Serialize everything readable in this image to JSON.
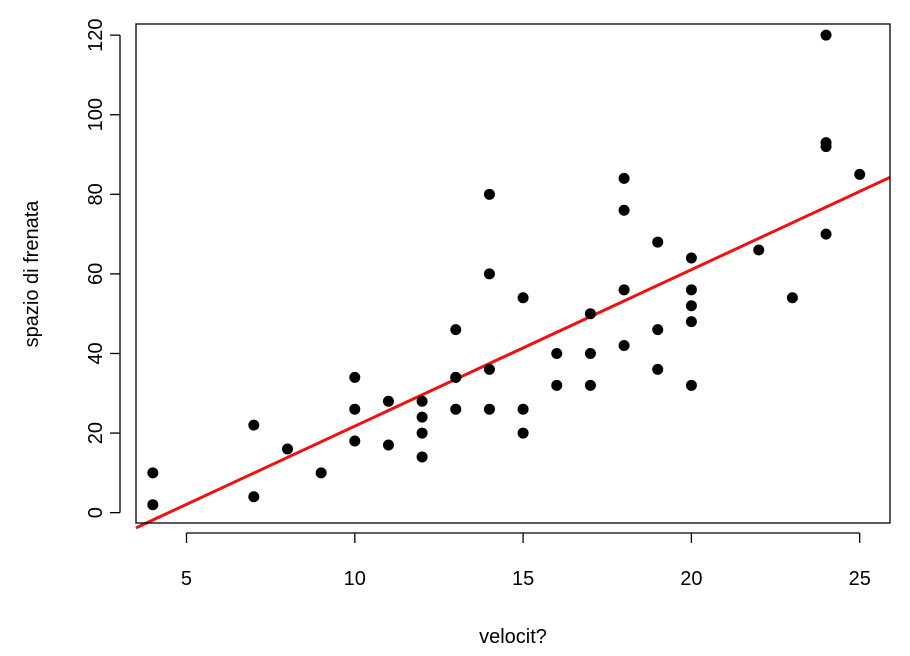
{
  "chart_data": {
    "type": "scatter",
    "title": "",
    "xlabel": "velocit?",
    "ylabel": "spazio di frenata",
    "xlim": [
      3.5,
      25.9
    ],
    "ylim": [
      -2.6,
      122.8
    ],
    "x_ticks": [
      5,
      10,
      15,
      20,
      25
    ],
    "y_ticks": [
      0,
      20,
      40,
      60,
      80,
      100,
      120
    ],
    "grid": false,
    "legend": "none",
    "point_color": "#000000",
    "line_color": "#ee1111",
    "regression_line": {
      "intercept": -17.579,
      "slope": 3.932
    },
    "points": [
      {
        "x": 4,
        "y": 2
      },
      {
        "x": 4,
        "y": 10
      },
      {
        "x": 7,
        "y": 4
      },
      {
        "x": 7,
        "y": 22
      },
      {
        "x": 8,
        "y": 16
      },
      {
        "x": 9,
        "y": 10
      },
      {
        "x": 10,
        "y": 18
      },
      {
        "x": 10,
        "y": 26
      },
      {
        "x": 10,
        "y": 34
      },
      {
        "x": 11,
        "y": 17
      },
      {
        "x": 11,
        "y": 28
      },
      {
        "x": 12,
        "y": 14
      },
      {
        "x": 12,
        "y": 20
      },
      {
        "x": 12,
        "y": 24
      },
      {
        "x": 12,
        "y": 28
      },
      {
        "x": 13,
        "y": 26
      },
      {
        "x": 13,
        "y": 34
      },
      {
        "x": 13,
        "y": 34
      },
      {
        "x": 13,
        "y": 46
      },
      {
        "x": 14,
        "y": 26
      },
      {
        "x": 14,
        "y": 36
      },
      {
        "x": 14,
        "y": 60
      },
      {
        "x": 14,
        "y": 80
      },
      {
        "x": 15,
        "y": 20
      },
      {
        "x": 15,
        "y": 26
      },
      {
        "x": 15,
        "y": 54
      },
      {
        "x": 16,
        "y": 32
      },
      {
        "x": 16,
        "y": 40
      },
      {
        "x": 17,
        "y": 32
      },
      {
        "x": 17,
        "y": 40
      },
      {
        "x": 17,
        "y": 50
      },
      {
        "x": 18,
        "y": 42
      },
      {
        "x": 18,
        "y": 56
      },
      {
        "x": 18,
        "y": 76
      },
      {
        "x": 18,
        "y": 84
      },
      {
        "x": 19,
        "y": 36
      },
      {
        "x": 19,
        "y": 46
      },
      {
        "x": 19,
        "y": 68
      },
      {
        "x": 20,
        "y": 32
      },
      {
        "x": 20,
        "y": 48
      },
      {
        "x": 20,
        "y": 52
      },
      {
        "x": 20,
        "y": 56
      },
      {
        "x": 20,
        "y": 64
      },
      {
        "x": 22,
        "y": 66
      },
      {
        "x": 23,
        "y": 54
      },
      {
        "x": 24,
        "y": 70
      },
      {
        "x": 24,
        "y": 92
      },
      {
        "x": 24,
        "y": 93
      },
      {
        "x": 24,
        "y": 120
      },
      {
        "x": 25,
        "y": 85
      }
    ]
  }
}
